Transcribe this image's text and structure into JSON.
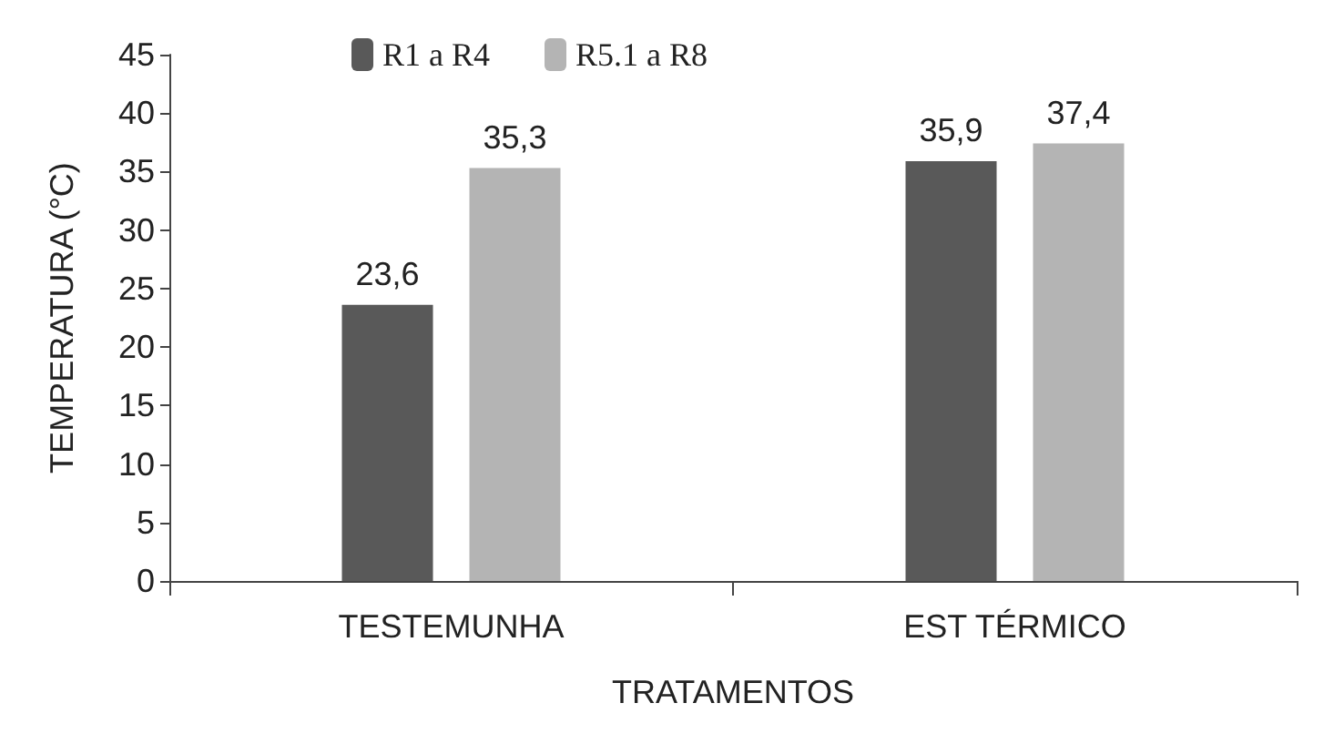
{
  "chart_data": {
    "type": "bar",
    "xlabel": "TRATAMENTOS",
    "ylabel": "TEMPERATURA (°C)",
    "categories": [
      "TESTEMUNHA",
      "EST TÉRMICO"
    ],
    "series": [
      {
        "name": "R1 a R4",
        "color": "#595959",
        "values": [
          23.6,
          35.9
        ],
        "value_labels": [
          "23,6",
          "35,9"
        ]
      },
      {
        "name": "R5.1 a R8",
        "color": "#b4b4b4",
        "values": [
          35.3,
          37.4
        ],
        "value_labels": [
          "35,3",
          "37,4"
        ]
      }
    ],
    "ylim": [
      0,
      45
    ],
    "yticks": [
      0,
      5,
      10,
      15,
      20,
      25,
      30,
      35,
      40,
      45
    ],
    "grid": false,
    "legend": "top"
  }
}
